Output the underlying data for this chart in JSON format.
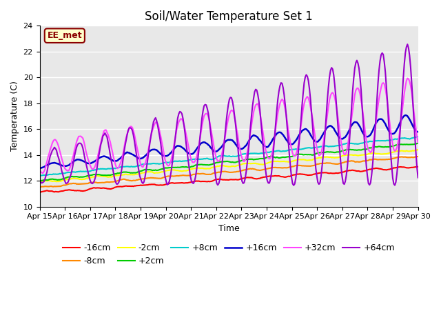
{
  "title": "Soil/Water Temperature Set 1",
  "xlabel": "Time",
  "ylabel": "Temperature (C)",
  "ylim": [
    10,
    24
  ],
  "xlim": [
    0,
    15
  ],
  "x_tick_labels": [
    "Apr 15",
    "Apr 16",
    "Apr 17",
    "Apr 18",
    "Apr 19",
    "Apr 20",
    "Apr 21",
    "Apr 22",
    "Apr 23",
    "Apr 24",
    "Apr 25",
    "Apr 26",
    "Apr 27",
    "Apr 28",
    "Apr 29",
    "Apr 30"
  ],
  "background_color": "#ffffff",
  "plot_bg_color": "#e8e8e8",
  "grid_color": "#ffffff",
  "annotation_text": "EE_met",
  "annotation_bg": "#ffffcc",
  "annotation_border": "#8b0000",
  "legend_entries": [
    "-16cm",
    "-8cm",
    "-2cm",
    "+2cm",
    "+8cm",
    "+16cm",
    "+32cm",
    "+64cm"
  ],
  "line_colors": [
    "#ff0000",
    "#ff8800",
    "#ffff00",
    "#00cc00",
    "#00cccc",
    "#0000cc",
    "#ff44ff",
    "#9900cc"
  ],
  "line_widths": [
    1.5,
    1.5,
    1.5,
    1.5,
    1.5,
    1.8,
    1.5,
    1.5
  ],
  "title_fontsize": 12,
  "label_fontsize": 9,
  "tick_fontsize": 8,
  "legend_fontsize": 9
}
